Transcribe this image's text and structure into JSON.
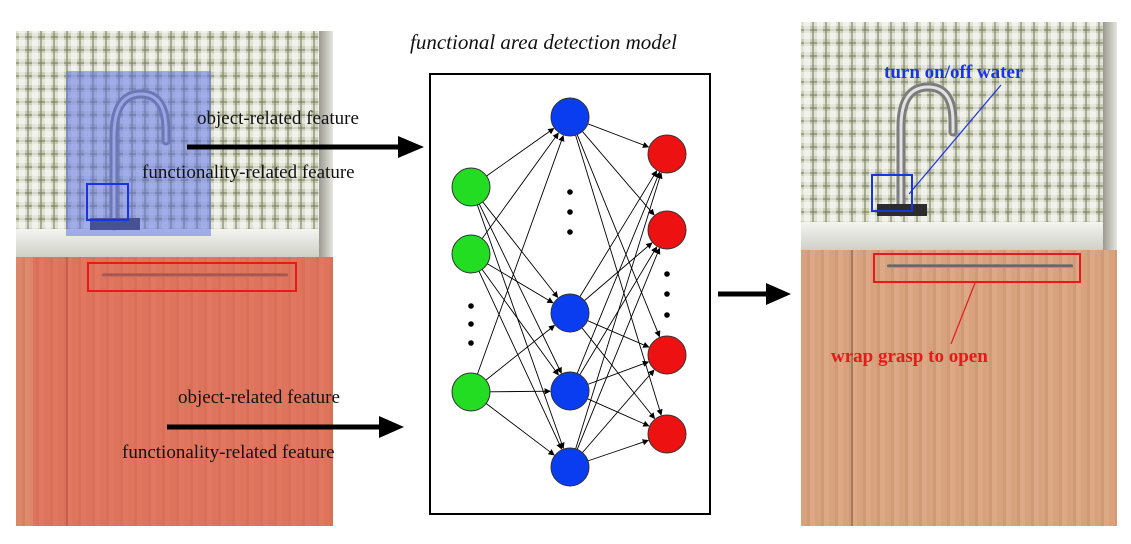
{
  "title": "functional area detection model",
  "inputs": {
    "top": {
      "line1": "object-related feature",
      "line2": "functionality-related feature"
    },
    "bottom": {
      "line1": "object-related feature",
      "line2": "functionality-related feature"
    }
  },
  "annotations": {
    "faucet": "turn on/off water",
    "drawer": "wrap grasp to open"
  },
  "colors": {
    "input_node": "#22dd22",
    "hidden_node": "#0a3cf0",
    "output_node": "#ee1111",
    "blue_annotation": "#1a33e6",
    "red_annotation": "#e61a1a",
    "blue_overlay": "#5f73e6",
    "red_overlay": "#e6463c"
  },
  "network": {
    "input_layer": {
      "node_count": 3,
      "ellipsis": true
    },
    "hidden_layer": {
      "node_count": 4,
      "ellipsis": true
    },
    "output_layer": {
      "node_count": 4,
      "ellipsis": true
    }
  }
}
